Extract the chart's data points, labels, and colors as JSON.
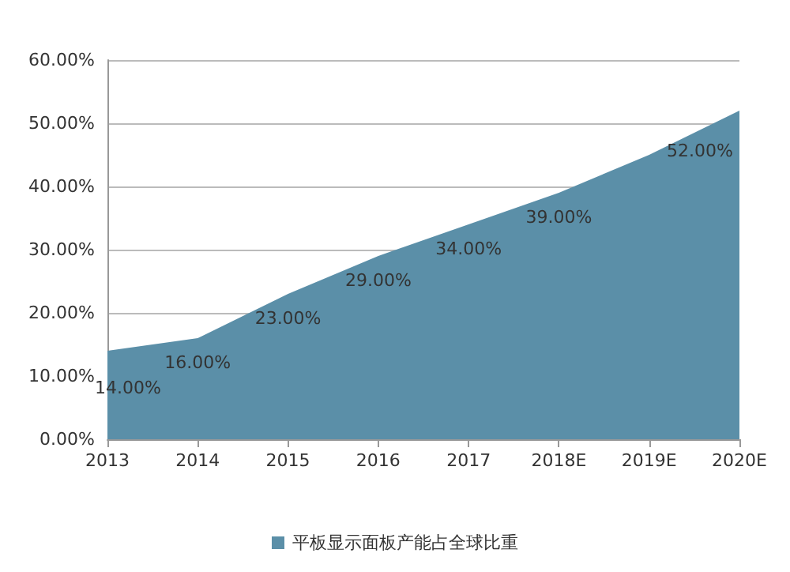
{
  "chart_data": {
    "type": "area",
    "categories": [
      "2013",
      "2014",
      "2015",
      "2016",
      "2017",
      "2018E",
      "2019E",
      "2020E"
    ],
    "series": [
      {
        "name": "平板显示面板产能占全球比重",
        "color": "#5b8fa8",
        "values": [
          14,
          16,
          23,
          29,
          34,
          39,
          45,
          52
        ],
        "value_labels": [
          "14.00%",
          "16.00%",
          "23.00%",
          "29.00%",
          "34.00%",
          "39.00%",
          null,
          "52.00%"
        ]
      }
    ],
    "ylim": [
      0,
      60
    ],
    "yticks": [
      {
        "value": 0,
        "label": "0.00%"
      },
      {
        "value": 10,
        "label": "10.00%"
      },
      {
        "value": 20,
        "label": "20.00%"
      },
      {
        "value": 30,
        "label": "30.00%"
      },
      {
        "value": 40,
        "label": "40.00%"
      },
      {
        "value": 50,
        "label": "50.00%"
      },
      {
        "value": 60,
        "label": "60.00%"
      }
    ],
    "grid": "y",
    "legend": "bottom"
  }
}
